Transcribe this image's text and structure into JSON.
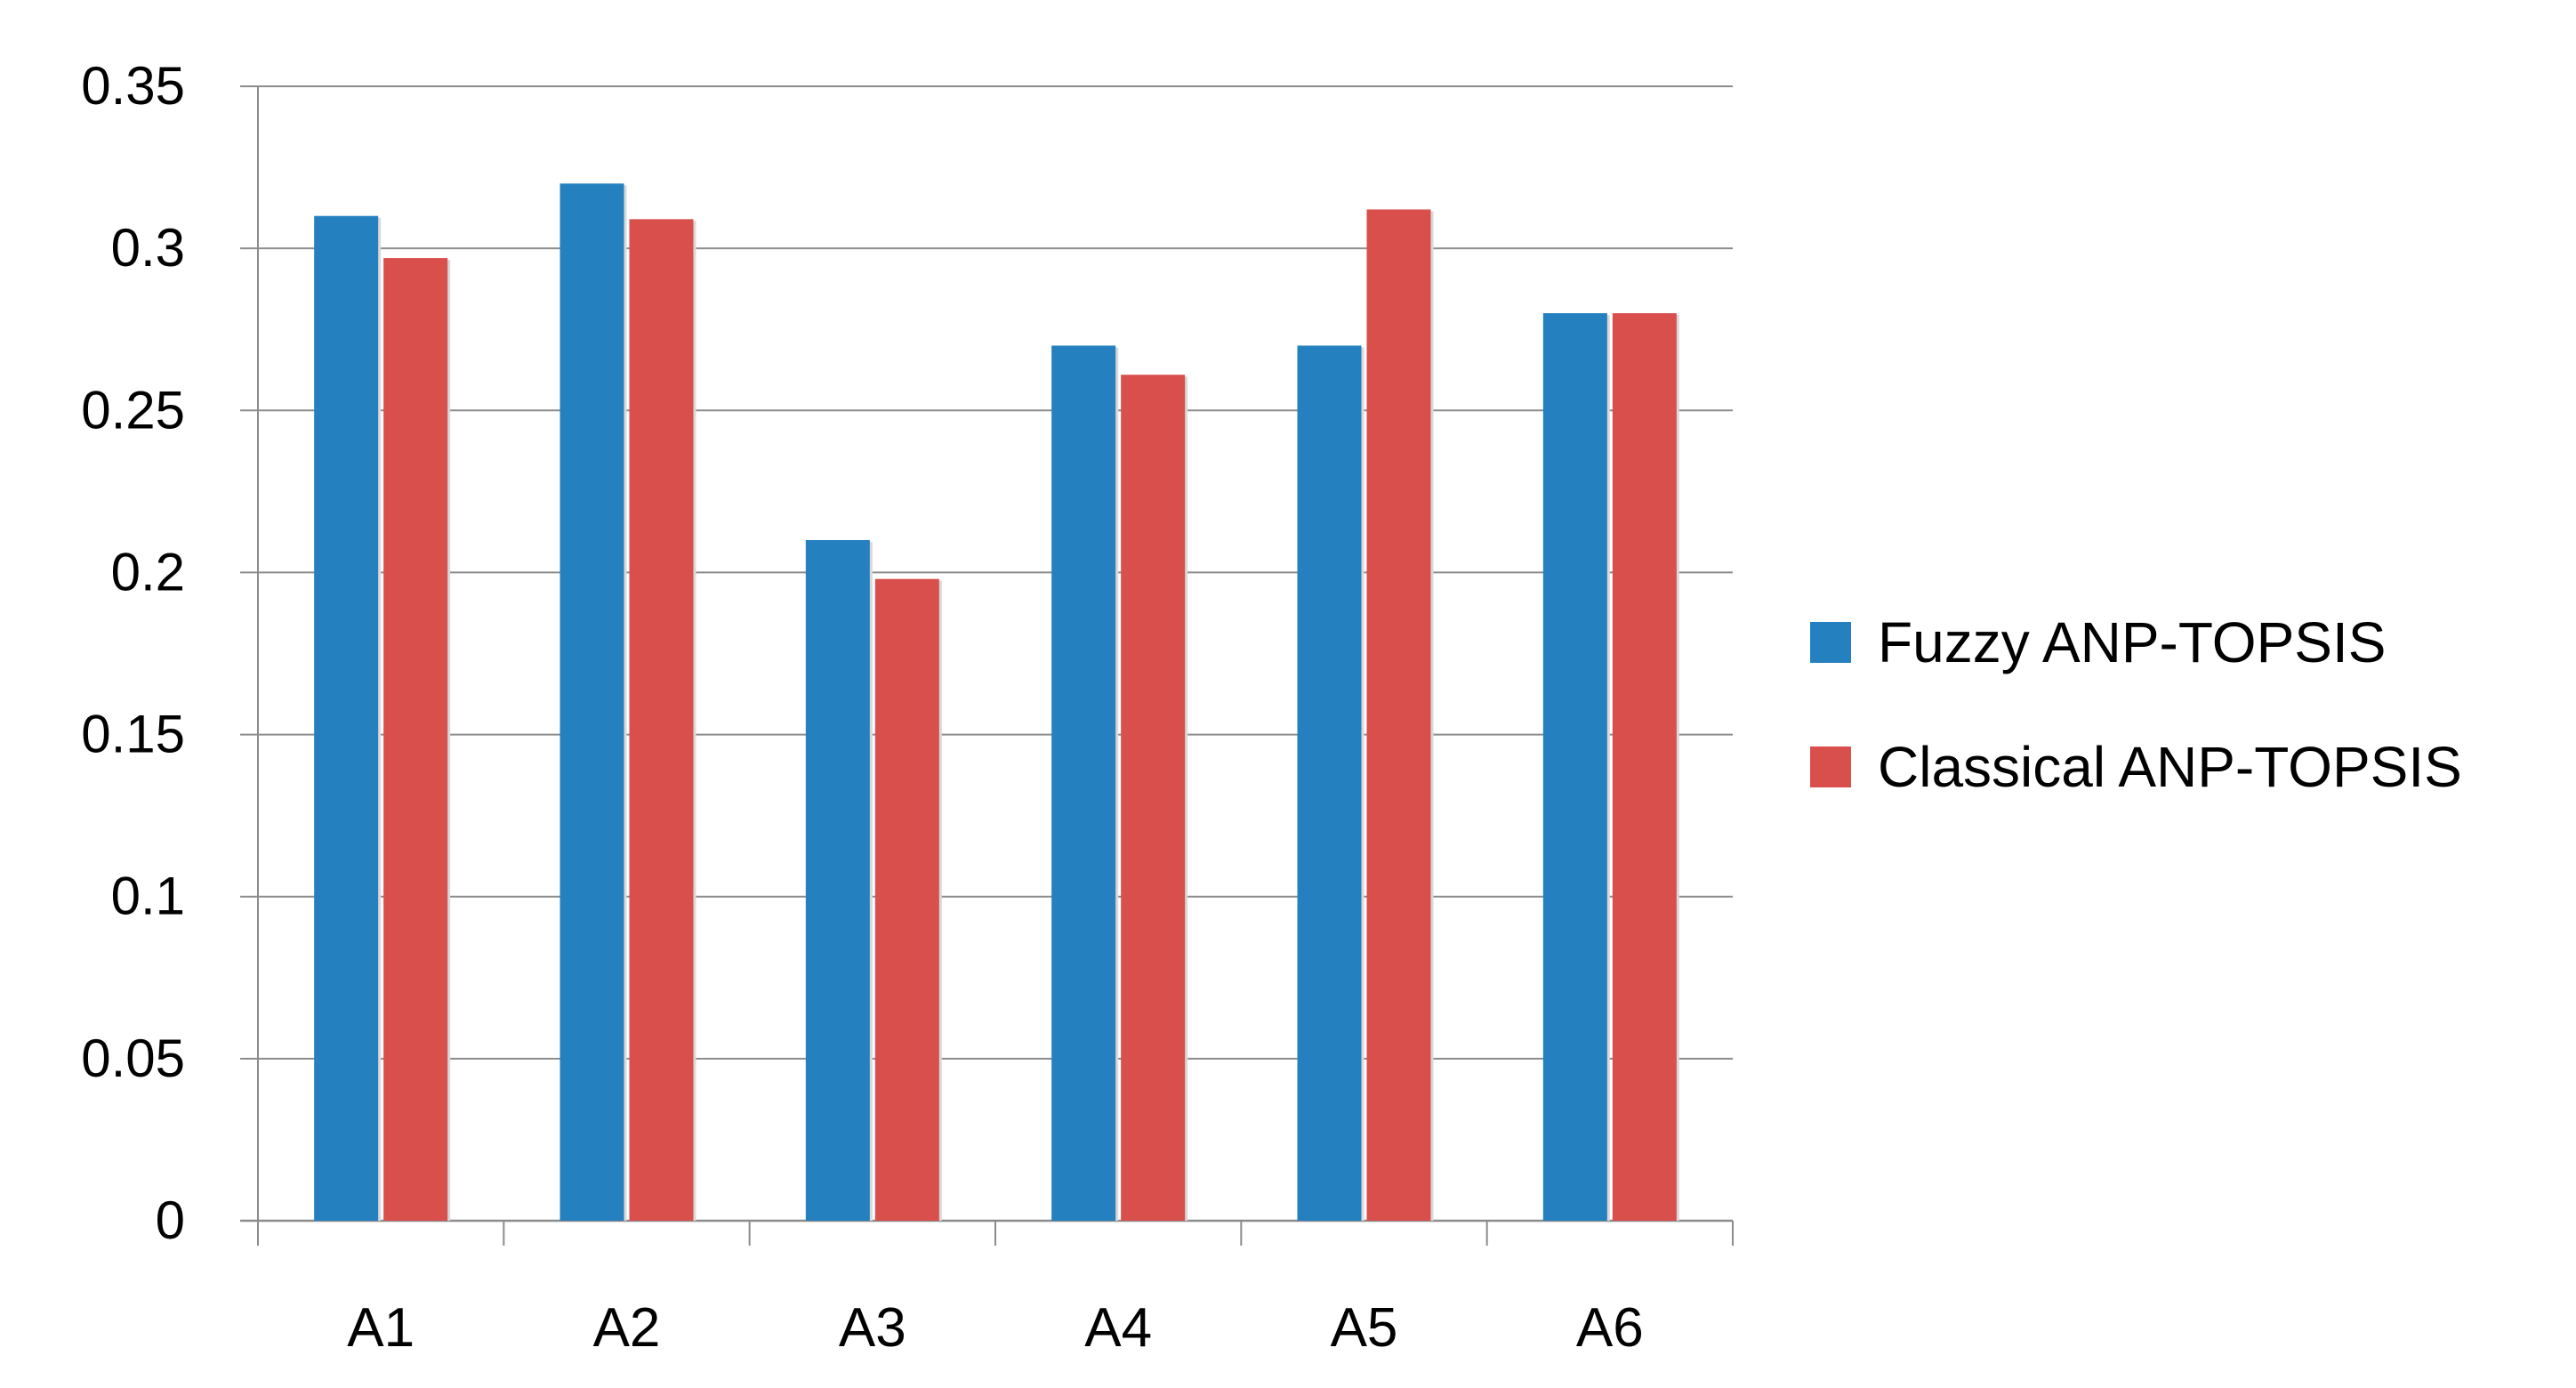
{
  "chart_data": {
    "type": "bar",
    "title": "",
    "xlabel": "",
    "ylabel": "",
    "categories": [
      "A1",
      "A2",
      "A3",
      "A4",
      "A5",
      "A6"
    ],
    "series": [
      {
        "name": "Fuzzy ANP-TOPSIS",
        "color": "#2580C0",
        "values": [
          0.31,
          0.32,
          0.21,
          0.27,
          0.27,
          0.28
        ]
      },
      {
        "name": "Classical ANP-TOPSIS",
        "color": "#D94F4C",
        "values": [
          0.297,
          0.309,
          0.198,
          0.261,
          0.312,
          0.28
        ]
      }
    ],
    "ylim": [
      0,
      0.35
    ],
    "yticks": [
      "0",
      "0.05",
      "0.1",
      "0.15",
      "0.2",
      "0.25",
      "0.3",
      "0.35"
    ],
    "grid": true,
    "legend_position": "right"
  }
}
